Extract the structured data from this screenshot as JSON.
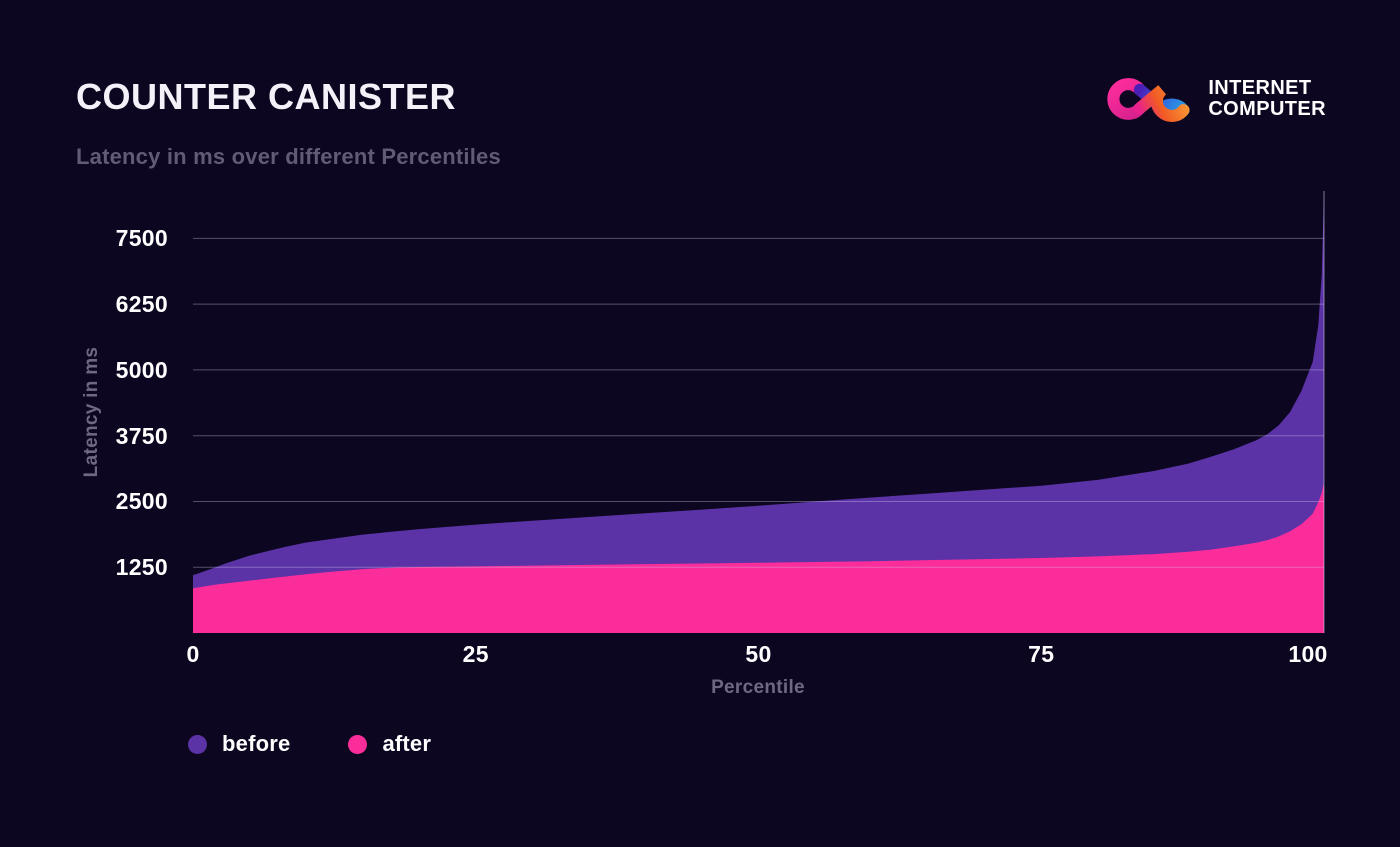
{
  "header": {
    "title": "COUNTER CANISTER",
    "subtitle": "Latency in ms over different Percentiles"
  },
  "logo": {
    "line1": "INTERNET",
    "line2": "COMPUTER"
  },
  "chart_data": {
    "type": "area",
    "title": "COUNTER CANISTER",
    "subtitle": "Latency in ms over different Percentiles",
    "xlabel": "Percentile",
    "ylabel": "Latency in ms",
    "xlim": [
      0,
      100
    ],
    "ylim": [
      0,
      8400
    ],
    "x_ticks": [
      0,
      25,
      50,
      75,
      100
    ],
    "y_ticks": [
      1250,
      2500,
      3750,
      5000,
      6250,
      7500
    ],
    "grid": "horizontal-only, drawn over the area fills",
    "legend_position": "bottom-left",
    "series": [
      {
        "name": "before",
        "color": "#5b33a6",
        "points": [
          [
            0,
            1100
          ],
          [
            1,
            1170
          ],
          [
            2,
            1250
          ],
          [
            3,
            1330
          ],
          [
            5,
            1470
          ],
          [
            8,
            1630
          ],
          [
            10,
            1720
          ],
          [
            15,
            1870
          ],
          [
            20,
            1975
          ],
          [
            25,
            2060
          ],
          [
            30,
            2135
          ],
          [
            35,
            2205
          ],
          [
            40,
            2275
          ],
          [
            45,
            2345
          ],
          [
            50,
            2420
          ],
          [
            55,
            2500
          ],
          [
            60,
            2575
          ],
          [
            65,
            2650
          ],
          [
            70,
            2725
          ],
          [
            75,
            2800
          ],
          [
            80,
            2910
          ],
          [
            85,
            3080
          ],
          [
            88,
            3220
          ],
          [
            90,
            3350
          ],
          [
            92,
            3490
          ],
          [
            94,
            3660
          ],
          [
            95,
            3780
          ],
          [
            96,
            3950
          ],
          [
            97,
            4200
          ],
          [
            98,
            4600
          ],
          [
            99,
            5150
          ],
          [
            99.5,
            5850
          ],
          [
            99.8,
            6800
          ],
          [
            100,
            8280
          ]
        ]
      },
      {
        "name": "after",
        "color": "#fb2d9b",
        "points": [
          [
            0,
            850
          ],
          [
            2,
            920
          ],
          [
            5,
            995
          ],
          [
            8,
            1070
          ],
          [
            10,
            1115
          ],
          [
            12,
            1160
          ],
          [
            15,
            1215
          ],
          [
            18,
            1245
          ],
          [
            20,
            1255
          ],
          [
            25,
            1265
          ],
          [
            30,
            1280
          ],
          [
            35,
            1295
          ],
          [
            40,
            1310
          ],
          [
            45,
            1320
          ],
          [
            50,
            1335
          ],
          [
            55,
            1350
          ],
          [
            60,
            1365
          ],
          [
            65,
            1385
          ],
          [
            70,
            1405
          ],
          [
            75,
            1425
          ],
          [
            80,
            1455
          ],
          [
            85,
            1500
          ],
          [
            88,
            1545
          ],
          [
            90,
            1585
          ],
          [
            92,
            1645
          ],
          [
            94,
            1715
          ],
          [
            95,
            1765
          ],
          [
            96,
            1835
          ],
          [
            97,
            1935
          ],
          [
            98,
            2065
          ],
          [
            99,
            2265
          ],
          [
            99.5,
            2490
          ],
          [
            99.8,
            2660
          ],
          [
            100,
            2860
          ]
        ]
      }
    ]
  },
  "legend": {
    "items": [
      {
        "label": "before",
        "color": "#5b33a6"
      },
      {
        "label": "after",
        "color": "#fb2d9b"
      }
    ]
  },
  "colors": {
    "background": "#0d0620",
    "grid": "rgba(205,200,235,0.38)",
    "plot_right_border": "rgba(205,200,235,0.5)",
    "tick_text": "#ffffff",
    "axis_title_text": "#6e6885",
    "subtitle_text": "#615b78",
    "title_text": "#f4f1f9",
    "logo_pink": "#ed1e79",
    "logo_purple": "#522785",
    "logo_blue": "#29abe2",
    "logo_orange": "#f15a24",
    "logo_yellow": "#fbb03b"
  }
}
